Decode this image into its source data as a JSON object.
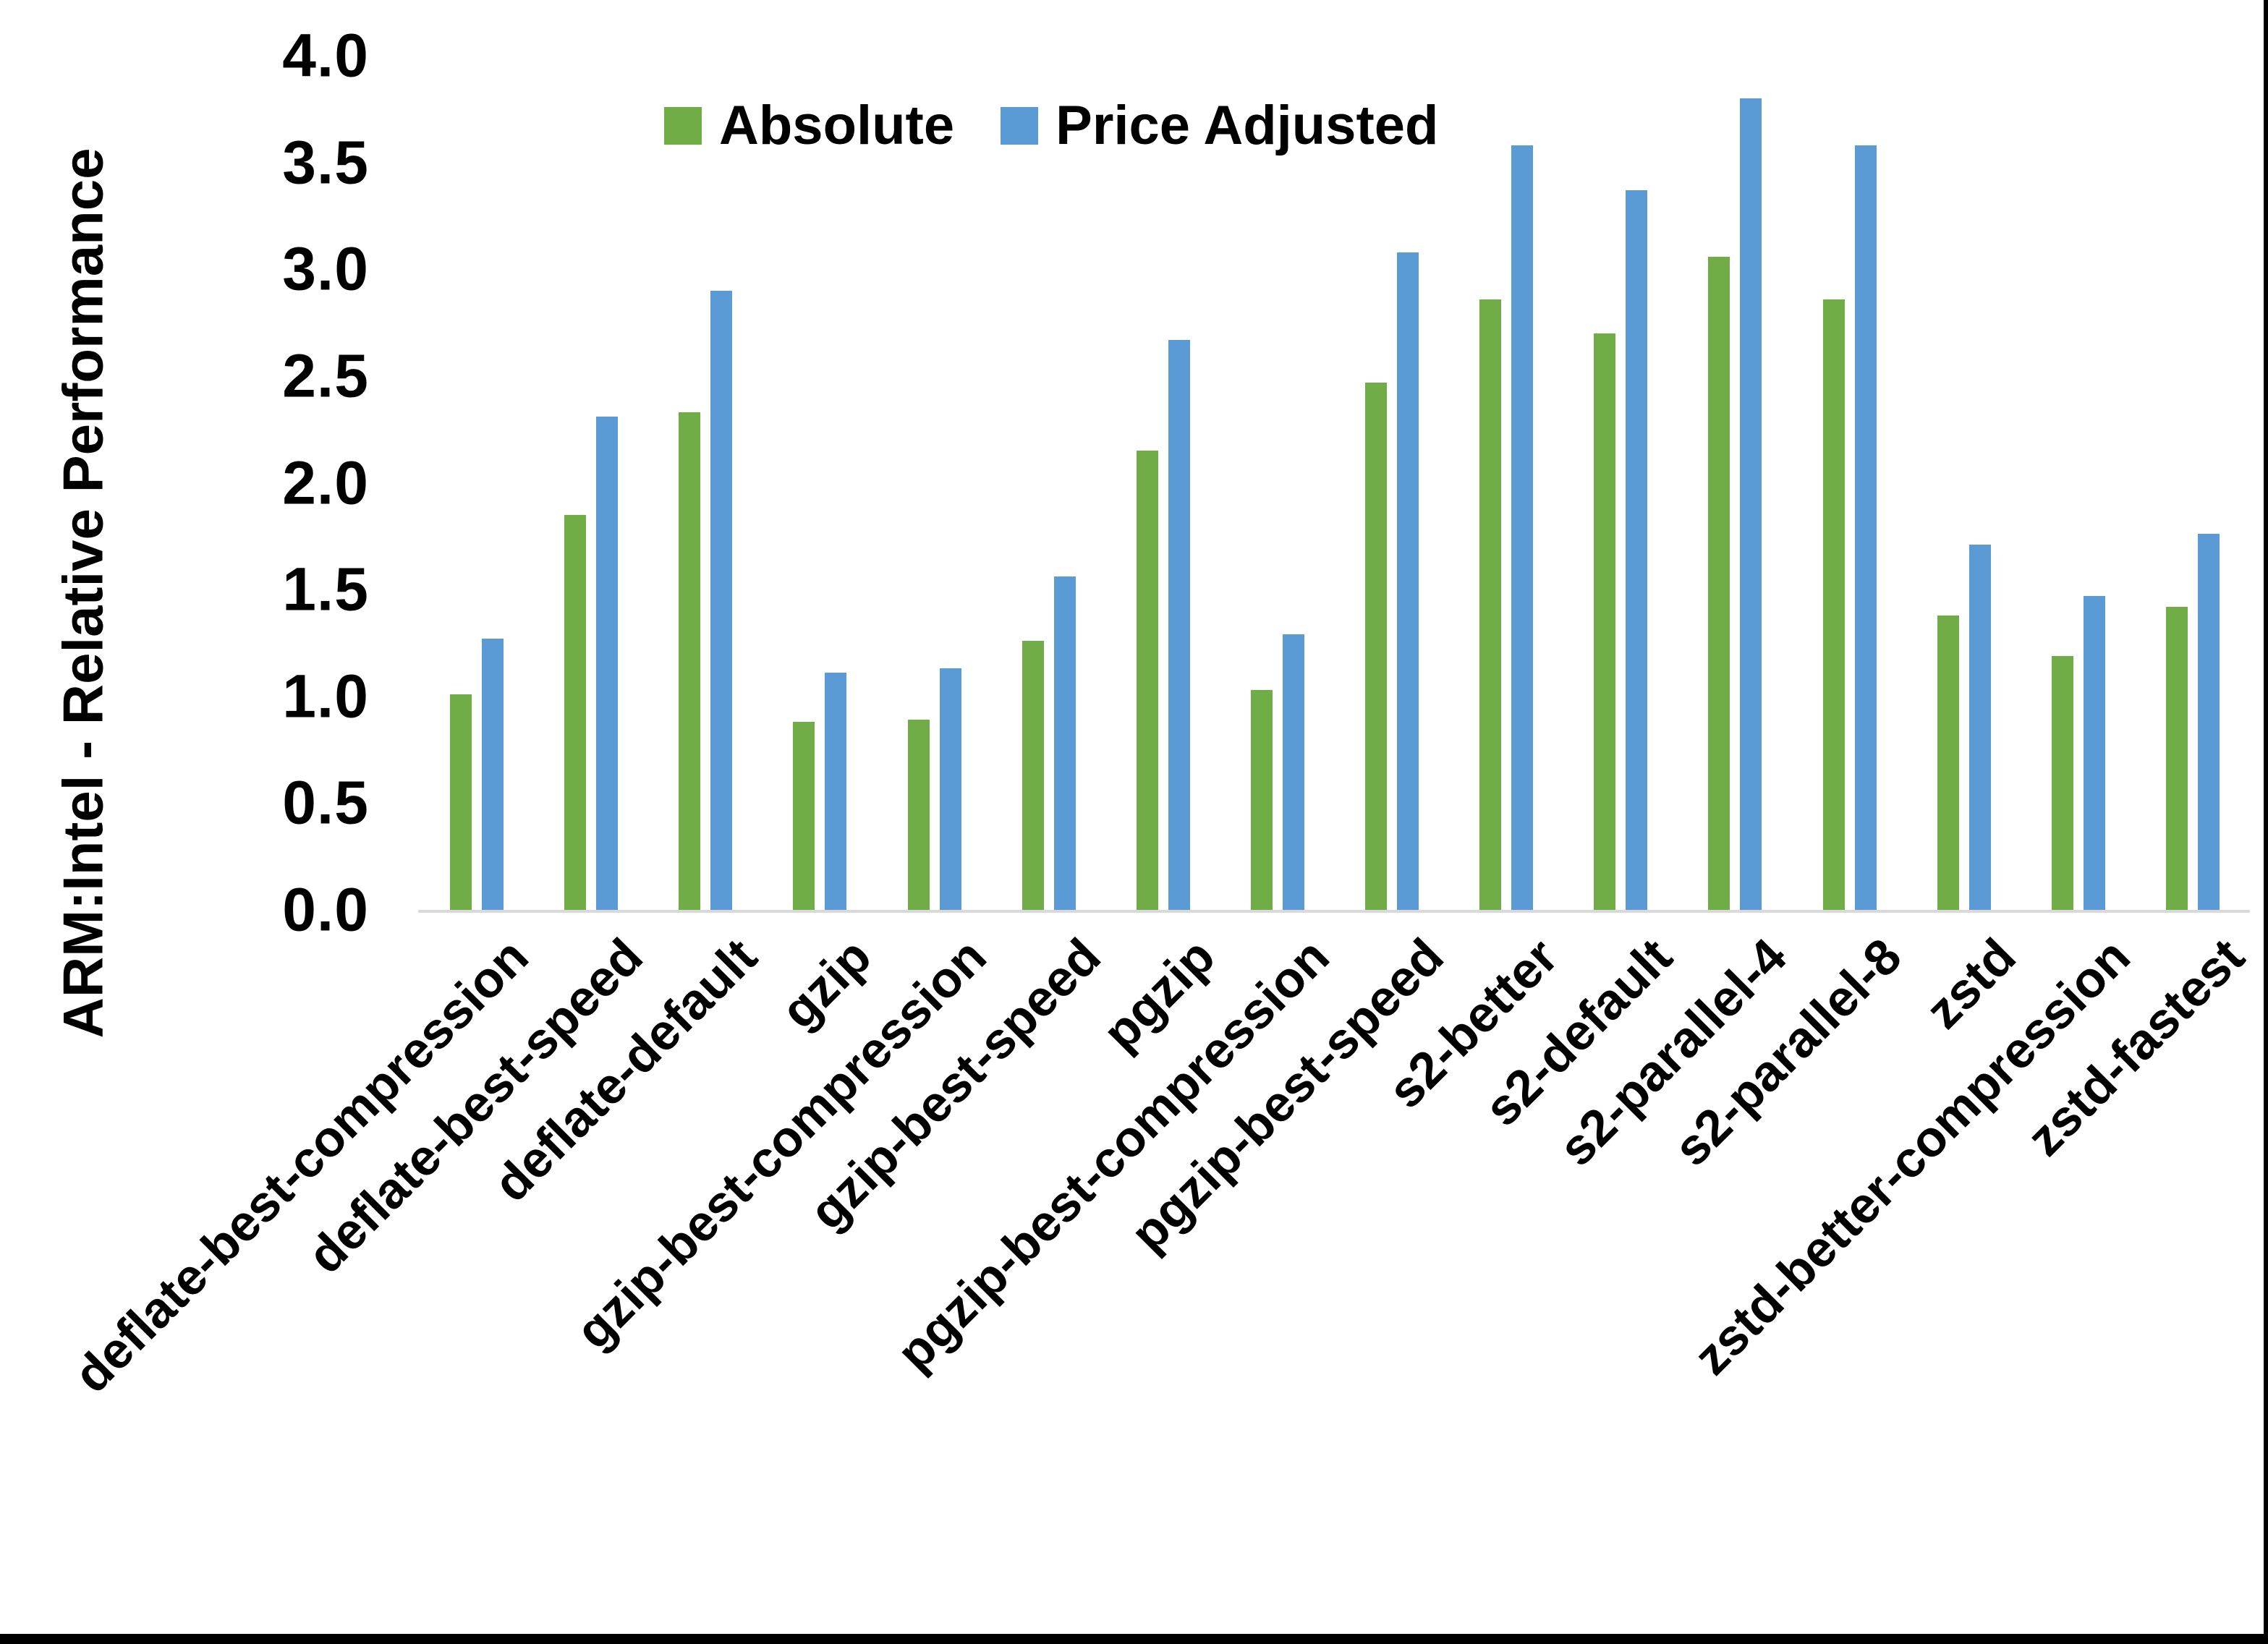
{
  "page": {
    "background": "#ffffff",
    "frame_color": "#000000"
  },
  "legend": {
    "items": [
      {
        "label": "Absolute",
        "color": "#70AD47"
      },
      {
        "label": "Price Adjusted",
        "color": "#5B9BD5"
      }
    ]
  },
  "axis": {
    "baseline_color": "#d9d9d9",
    "ytick_labels": [
      "0.0",
      "0.5",
      "1.0",
      "1.5",
      "2.0",
      "2.5",
      "3.0",
      "3.5",
      "4.0"
    ]
  },
  "chart_data": {
    "type": "bar",
    "title": "",
    "xlabel": "",
    "ylabel": "ARM:Intel - Relative Performance",
    "ylim": [
      0,
      4.0
    ],
    "ytick_step": 0.5,
    "grid": false,
    "legend_position": "top-center",
    "categories": [
      "deflate-best-compression",
      "deflate-best-speed",
      "deflate-default",
      "gzip",
      "gzip-best-compression",
      "gzip-best-speed",
      "pgzip",
      "pgzip-best-compression",
      "pgzip-best-speed",
      "s2-better",
      "s2-default",
      "s2-parallel-4",
      "s2-parallel-8",
      "zstd",
      "zstd-better-compression",
      "zstd-fastest"
    ],
    "series": [
      {
        "name": "Absolute",
        "color": "#70AD47",
        "values": [
          1.01,
          1.85,
          2.33,
          0.88,
          0.89,
          1.26,
          2.15,
          1.03,
          2.47,
          2.86,
          2.7,
          3.06,
          2.86,
          1.38,
          1.19,
          1.42
        ]
      },
      {
        "name": "Price Adjusted",
        "color": "#5B9BD5",
        "values": [
          1.27,
          2.31,
          2.9,
          1.11,
          1.13,
          1.56,
          2.67,
          1.29,
          3.08,
          3.58,
          3.37,
          3.8,
          3.58,
          1.71,
          1.47,
          1.76
        ]
      }
    ]
  }
}
